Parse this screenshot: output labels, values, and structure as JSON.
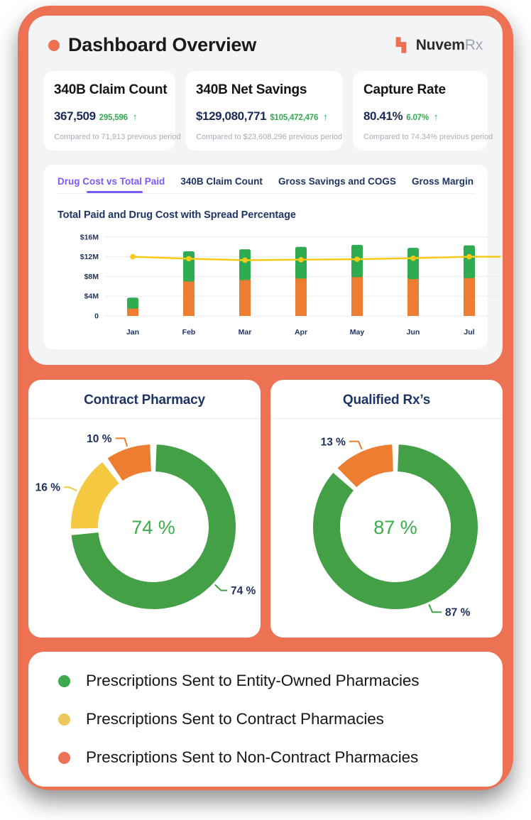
{
  "header": {
    "title": "Dashboard Overview",
    "logo_text": "Nuvem",
    "logo_suffix": "Rx"
  },
  "kpis": [
    {
      "title": "340B Claim Count",
      "value": "367,509",
      "delta": "295,596",
      "arrow": "↑",
      "compare": "Compared to 71,913 previous period"
    },
    {
      "title": "340B Net Savings",
      "value": "$129,080,771",
      "delta": "$105,472,476",
      "arrow": "↑",
      "compare": "Compared to $23,608,296 previous period"
    },
    {
      "title": "Capture Rate",
      "value": "80.41%",
      "delta": "6.07%",
      "arrow": "↑",
      "compare": "Compared to 74.34% previous period"
    }
  ],
  "tabs": [
    {
      "label": "Drug Cost vs Total Paid",
      "active": true
    },
    {
      "label": "340B Claim Count",
      "active": false
    },
    {
      "label": "Gross Savings and COGS",
      "active": false
    },
    {
      "label": "Gross Margin",
      "active": false
    }
  ],
  "chart_data": [
    {
      "type": "bar",
      "subtype": "stacked-bars-with-line",
      "title": "Total Paid and Drug Cost with Spread Percentage",
      "categories": [
        "Jan",
        "Feb",
        "Mar",
        "Apr",
        "May",
        "Jun",
        "Jul"
      ],
      "unit": "$M",
      "series": [
        {
          "name": "Drug Cost",
          "color": "#ED7D31",
          "values": [
            1.9,
            7.4,
            7.7,
            8.0,
            8.3,
            7.9,
            8.1
          ]
        },
        {
          "name": "Total Paid (stack total)",
          "color": "#2FAC52",
          "values": [
            3.7,
            13.1,
            13.5,
            14.0,
            14.4,
            13.8,
            14.3
          ]
        }
      ],
      "line": {
        "name": "Spread Percentage",
        "color": "#FBC918",
        "values": [
          12.0,
          11.6,
          11.3,
          11.4,
          11.5,
          11.7,
          12.0
        ]
      },
      "ylim": [
        0,
        16
      ],
      "yticks": [
        {
          "v": 16,
          "label": "$16M"
        },
        {
          "v": 12,
          "label": "$12M"
        },
        {
          "v": 8,
          "label": "$8M"
        },
        {
          "v": 4,
          "label": "$4M"
        },
        {
          "v": 0,
          "label": "0"
        }
      ],
      "grid": true,
      "legend_position": "none"
    },
    {
      "type": "pie",
      "subtype": "donut",
      "title": "Contract Pharmacy",
      "center_label": "74 %",
      "center_color": "#3CAE4A",
      "slices": [
        {
          "label": "74 %",
          "value": 74,
          "color": "#43A047"
        },
        {
          "label": "16 %",
          "value": 16,
          "color": "#F5C842"
        },
        {
          "label": "10 %",
          "value": 10,
          "color": "#ED7D31"
        }
      ]
    },
    {
      "type": "pie",
      "subtype": "donut",
      "title": "Qualified Rx’s",
      "center_label": "87 %",
      "center_color": "#3CAE4A",
      "slices": [
        {
          "label": "87 %",
          "value": 87,
          "color": "#43A047"
        },
        {
          "label": "13 %",
          "value": 13,
          "color": "#ED7D31"
        }
      ]
    }
  ],
  "legend": {
    "items": [
      {
        "label": "Prescriptions Sent to Entity-Owned Pharmacies",
        "color": "#3BAA4E"
      },
      {
        "label": "Prescriptions Sent to Contract Pharmacies",
        "color": "#EDC75B"
      },
      {
        "label": "Prescriptions Sent to Non-Contract Pharmacies",
        "color": "#ED7155"
      }
    ]
  },
  "colors": {
    "frame": "#ED7153",
    "panel": "#F3F4F6",
    "navy": "#1B2A55",
    "green": "#34A853",
    "purple": "#7A5AF8",
    "chart_navy": "#1F3565",
    "callout_text": "#203160",
    "grid": "#E9EBEF"
  }
}
